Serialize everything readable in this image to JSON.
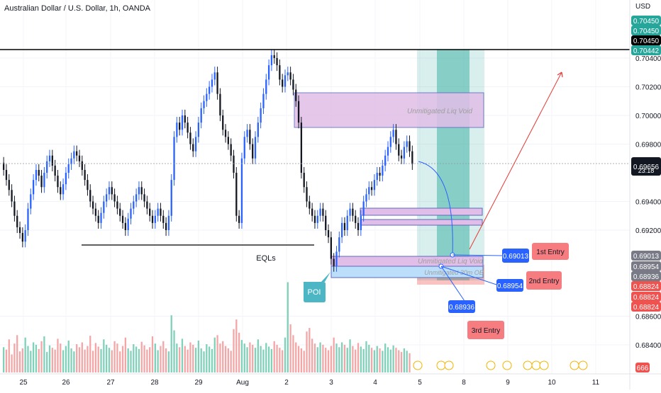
{
  "header": {
    "symbol_title": "Australian Dollar / U.S. Dollar, 1h, OANDA",
    "currency": "USD"
  },
  "colors": {
    "up": "#2962ff",
    "down": "#131722",
    "vol_up": "#7fd1b9",
    "vol_down": "#f4a6a6",
    "green_zone": "#26a69a",
    "red_zone": "#ef5350",
    "liq_box": "#e1bee7",
    "ob_box": "#bbdefb",
    "label_red": "#f77c80",
    "label_blue": "#2962ff",
    "poi": "#4db6c4"
  },
  "chart_data": {
    "type": "candlestick",
    "x_ticks": [
      "25",
      "26",
      "27",
      "28",
      "29",
      "Aug",
      "2",
      "3",
      "4",
      "5",
      "8",
      "9",
      "10",
      "11"
    ],
    "y_ticks": [
      "0.70400",
      "0.70200",
      "0.70000",
      "0.69800",
      "0.69400",
      "0.69200",
      "0.68600",
      "0.68400"
    ],
    "price_labels": {
      "top": [
        "0.70450",
        "0.70450",
        "0.70450",
        "0.70442"
      ],
      "current": "0.69656",
      "countdown": "23:18",
      "lower": [
        "0.69013",
        "0.68954",
        "0.68936"
      ],
      "red": [
        "0.68824",
        "0.68824",
        "0.68824"
      ],
      "volume_badge": "666"
    },
    "annotations": {
      "eqls": "EQLs",
      "poi": "POI",
      "liq_void_top": "Unmitigated Liq Void",
      "liq_void_low": "Unmitigated Liq Void",
      "ob": "Unmitigated 30m OB",
      "entry1": "1st Entry",
      "entry2": "2nd Entry",
      "entry3": "3rd Entry",
      "level1": "0.69013",
      "level2": "0.68954",
      "level3": "0.68936"
    },
    "close_series": [
      0.6962,
      0.6955,
      0.6948,
      0.694,
      0.693,
      0.6922,
      0.6918,
      0.6912,
      0.692,
      0.6935,
      0.6945,
      0.6955,
      0.6962,
      0.6958,
      0.695,
      0.696,
      0.6968,
      0.6972,
      0.6965,
      0.6958,
      0.695,
      0.6945,
      0.6952,
      0.696,
      0.6966,
      0.697,
      0.6975,
      0.6972,
      0.6968,
      0.6962,
      0.6955,
      0.6948,
      0.694,
      0.6935,
      0.693,
      0.6925,
      0.6932,
      0.694,
      0.6945,
      0.695,
      0.6945,
      0.694,
      0.6935,
      0.693,
      0.6925,
      0.692,
      0.6928,
      0.6935,
      0.694,
      0.6945,
      0.695,
      0.6945,
      0.694,
      0.6935,
      0.693,
      0.6925,
      0.693,
      0.6935,
      0.693,
      0.6925,
      0.692,
      0.693,
      0.6955,
      0.6985,
      0.6995,
      0.699,
      0.7,
      0.6995,
      0.6988,
      0.698,
      0.6975,
      0.6985,
      0.6995,
      0.7005,
      0.701,
      0.7015,
      0.702,
      0.7025,
      0.703,
      0.7015,
      0.7,
      0.699,
      0.6985,
      0.698,
      0.6972,
      0.696,
      0.693,
      0.6925,
      0.697,
      0.6985,
      0.699,
      0.698,
      0.697,
      0.6985,
      0.6995,
      0.7005,
      0.7015,
      0.7025,
      0.7035,
      0.7042,
      0.704,
      0.7035,
      0.7025,
      0.702,
      0.7028,
      0.703,
      0.7025,
      0.7018,
      0.701,
      0.6995,
      0.696,
      0.695,
      0.694,
      0.6935,
      0.693,
      0.6925,
      0.693,
      0.6935,
      0.693,
      0.692,
      0.6915,
      0.69,
      0.6895,
      0.6905,
      0.6915,
      0.6925,
      0.692,
      0.693,
      0.6935,
      0.693,
      0.6925,
      0.692,
      0.693,
      0.694,
      0.6945,
      0.695,
      0.6948,
      0.6955,
      0.696,
      0.6958,
      0.6965,
      0.6972,
      0.6978,
      0.6985,
      0.699,
      0.698,
      0.6972,
      0.697,
      0.6978,
      0.6982,
      0.6975,
      0.6966
    ],
    "volume_series": [
      42,
      38,
      55,
      30,
      48,
      62,
      35,
      40,
      58,
      44,
      36,
      50,
      46,
      39,
      52,
      60,
      34,
      45,
      41,
      38,
      56,
      48,
      37,
      44,
      53,
      40,
      35,
      47,
      42,
      50,
      38,
      44,
      61,
      36,
      49,
      43,
      39,
      55,
      46,
      41,
      37,
      52,
      48,
      35,
      44,
      58,
      40,
      36,
      47,
      43,
      39,
      51,
      45,
      38,
      42,
      60,
      48,
      37,
      44,
      52,
      40,
      35,
      95,
      70,
      48,
      42,
      56,
      44,
      38,
      50,
      46,
      41,
      53,
      40,
      35,
      47,
      43,
      39,
      58,
      62,
      48,
      52,
      44,
      40,
      36,
      72,
      88,
      66,
      54,
      48,
      42,
      50,
      46,
      41,
      55,
      44,
      38,
      49,
      43,
      39,
      52,
      46,
      41,
      37,
      58,
      150,
      80,
      62,
      50,
      44,
      40,
      36,
      68,
      74,
      56,
      48,
      42,
      50,
      46,
      41,
      37,
      44,
      58,
      48,
      42,
      50,
      46,
      41,
      55,
      44,
      38,
      49,
      43,
      39,
      52,
      46,
      41,
      37,
      44,
      40,
      36,
      48,
      42,
      38,
      45,
      41,
      37,
      34,
      40,
      36,
      32
    ]
  }
}
